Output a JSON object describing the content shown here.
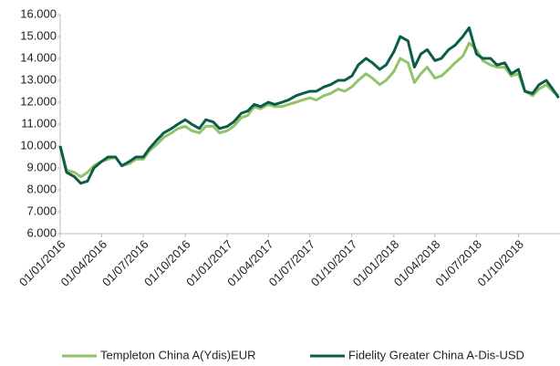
{
  "chart_data": {
    "type": "line",
    "x": [
      "01/01/2016",
      "15/01/2016",
      "01/02/2016",
      "15/02/2016",
      "01/03/2016",
      "15/03/2016",
      "01/04/2016",
      "15/04/2016",
      "01/05/2016",
      "15/05/2016",
      "01/06/2016",
      "15/06/2016",
      "01/07/2016",
      "15/07/2016",
      "01/08/2016",
      "15/08/2016",
      "01/09/2016",
      "15/09/2016",
      "01/10/2016",
      "15/10/2016",
      "01/11/2016",
      "15/11/2016",
      "01/12/2016",
      "15/12/2016",
      "01/01/2017",
      "15/01/2017",
      "01/02/2017",
      "15/02/2017",
      "01/03/2017",
      "15/03/2017",
      "01/04/2017",
      "15/04/2017",
      "01/05/2017",
      "15/05/2017",
      "01/06/2017",
      "15/06/2017",
      "01/07/2017",
      "15/07/2017",
      "01/08/2017",
      "15/08/2017",
      "01/09/2017",
      "15/09/2017",
      "01/10/2017",
      "15/10/2017",
      "01/11/2017",
      "15/11/2017",
      "01/12/2017",
      "15/12/2017",
      "01/01/2018",
      "15/01/2018",
      "01/02/2018",
      "15/02/2018",
      "01/03/2018",
      "15/03/2018",
      "01/04/2018",
      "15/04/2018",
      "01/05/2018",
      "15/05/2018",
      "01/06/2018",
      "15/06/2018",
      "01/07/2018",
      "15/07/2018",
      "01/08/2018",
      "15/08/2018",
      "01/09/2018",
      "15/09/2018",
      "01/10/2018",
      "15/10/2018",
      "01/11/2018",
      "15/11/2018",
      "01/12/2018",
      "15/12/2018",
      "28/12/2018"
    ],
    "series": [
      {
        "name": "Templeton China A(Ydis)EUR",
        "color": "#92c36b",
        "values": [
          10.0,
          8.9,
          8.8,
          8.6,
          8.8,
          9.1,
          9.3,
          9.4,
          9.5,
          9.1,
          9.2,
          9.4,
          9.4,
          9.8,
          10.1,
          10.4,
          10.6,
          10.8,
          10.9,
          10.7,
          10.6,
          10.9,
          10.9,
          10.6,
          10.7,
          10.9,
          11.3,
          11.4,
          11.8,
          11.7,
          11.9,
          11.8,
          11.8,
          11.9,
          12.0,
          12.1,
          12.2,
          12.1,
          12.3,
          12.4,
          12.6,
          12.5,
          12.7,
          13.0,
          13.3,
          13.1,
          12.8,
          13.0,
          13.4,
          14.0,
          13.8,
          12.9,
          13.3,
          13.6,
          13.1,
          13.2,
          13.5,
          13.8,
          14.1,
          14.7,
          14.4,
          13.9,
          13.7,
          13.6,
          13.6,
          13.2,
          13.3,
          12.5,
          12.3,
          12.6,
          12.8,
          12.5,
          12.3
        ]
      },
      {
        "name": "Fidelity Greater China A-Dis-USD",
        "color": "#0b5d4a",
        "values": [
          10.0,
          8.8,
          8.6,
          8.3,
          8.4,
          9.0,
          9.3,
          9.5,
          9.5,
          9.1,
          9.3,
          9.5,
          9.5,
          9.9,
          10.3,
          10.6,
          10.8,
          11.0,
          11.2,
          11.0,
          10.8,
          11.2,
          11.1,
          10.8,
          10.9,
          11.1,
          11.5,
          11.6,
          11.9,
          11.8,
          12.0,
          11.9,
          12.0,
          12.1,
          12.3,
          12.4,
          12.5,
          12.5,
          12.7,
          12.8,
          13.0,
          13.0,
          13.2,
          13.7,
          14.0,
          13.8,
          13.5,
          13.7,
          14.3,
          15.0,
          14.8,
          13.6,
          14.2,
          14.4,
          13.9,
          14.0,
          14.4,
          14.6,
          15.0,
          15.4,
          14.2,
          14.0,
          14.0,
          13.7,
          13.8,
          13.3,
          13.5,
          12.5,
          12.4,
          12.8,
          13.0,
          12.6,
          12.2
        ]
      }
    ],
    "xlim": [
      "01/01/2016",
      "31/12/2018"
    ],
    "xticks": [
      "01/01/2016",
      "01/04/2016",
      "01/07/2016",
      "01/10/2016",
      "01/01/2017",
      "01/04/2017",
      "01/07/2017",
      "01/10/2017",
      "01/01/2018",
      "01/04/2018",
      "01/07/2018",
      "01/10/2018"
    ],
    "ylim": [
      6,
      16
    ],
    "yticks": [
      {
        "value": 6,
        "label": "6.000"
      },
      {
        "value": 7,
        "label": "7.000"
      },
      {
        "value": 8,
        "label": "8.000"
      },
      {
        "value": 9,
        "label": "9.000"
      },
      {
        "value": 10,
        "label": "10.000"
      },
      {
        "value": 11,
        "label": "11.000"
      },
      {
        "value": 12,
        "label": "12.000"
      },
      {
        "value": 13,
        "label": "13.000"
      },
      {
        "value": 14,
        "label": "14.000"
      },
      {
        "value": 15,
        "label": "15.000"
      },
      {
        "value": 16,
        "label": "16.000"
      }
    ],
    "grid": false,
    "legend": "bottom"
  }
}
